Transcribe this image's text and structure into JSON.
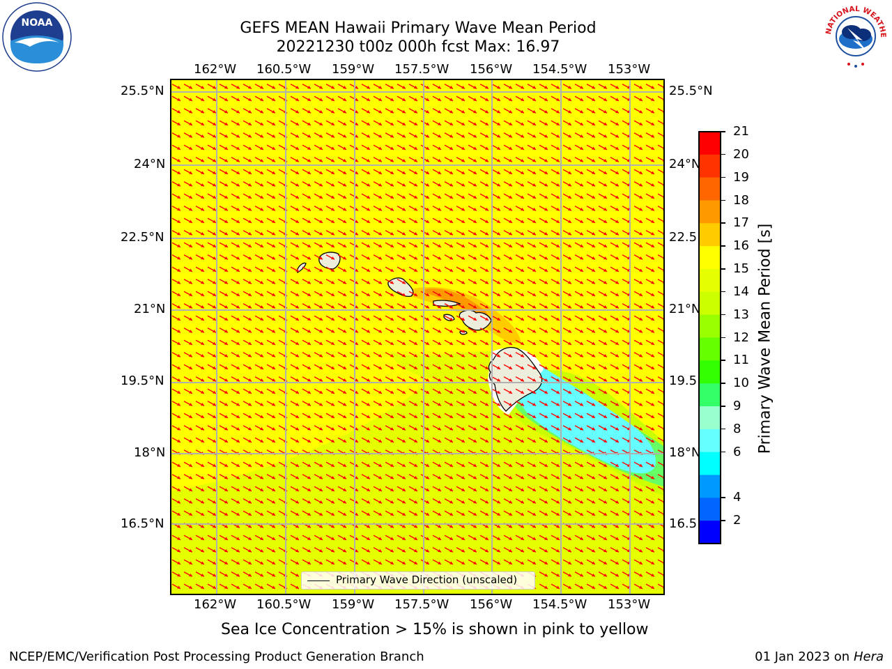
{
  "title": {
    "line1": "GEFS MEAN Hawaii Primary Wave Mean Period",
    "line2": "20221230 t00z 000h fcst   Max: 16.97"
  },
  "lon_labels": [
    "162°W",
    "160.5°W",
    "159°W",
    "157.5°W",
    "156°W",
    "154.5°W",
    "153°W"
  ],
  "lat_labels": [
    "25.5°N",
    "24°N",
    "22.5°N",
    "21°N",
    "19.5°N",
    "18°N",
    "16.5°N"
  ],
  "legend": {
    "label": "Primary Wave Direction (unscaled)"
  },
  "colorbar": {
    "title": "Primary Wave Mean Period [s]",
    "ticks": [
      "21",
      "20",
      "19",
      "18",
      "17",
      "16",
      "15",
      "14",
      "13",
      "12",
      "11",
      "10",
      "9",
      "8",
      "6",
      "4",
      "2"
    ],
    "colors_top_to_bottom": [
      "#ff0000",
      "#ff3300",
      "#ff6600",
      "#ff9900",
      "#ffcc00",
      "#ffff00",
      "#e6ff00",
      "#ccff00",
      "#99ff00",
      "#66ff00",
      "#33ff00",
      "#33ff66",
      "#99ffcc",
      "#66ffff",
      "#00ffff",
      "#0099ff",
      "#0066ff",
      "#0000ff"
    ]
  },
  "caption": "Sea Ice Concentration > 15% is shown in pink to yellow",
  "footer": {
    "left": "NCEP/EMC/Verification Post Processing Product Generation Branch",
    "date": "01 Jan 2023 on ",
    "machine": "Hera"
  },
  "logos": {
    "noaa": "NOAA",
    "nws": "NATIONAL WEATHER SERVICE"
  },
  "colors": {
    "field": "#ffff00",
    "arrows": "#ff0000",
    "grid": "#b0b0b0",
    "land": "#eeeedd"
  }
}
